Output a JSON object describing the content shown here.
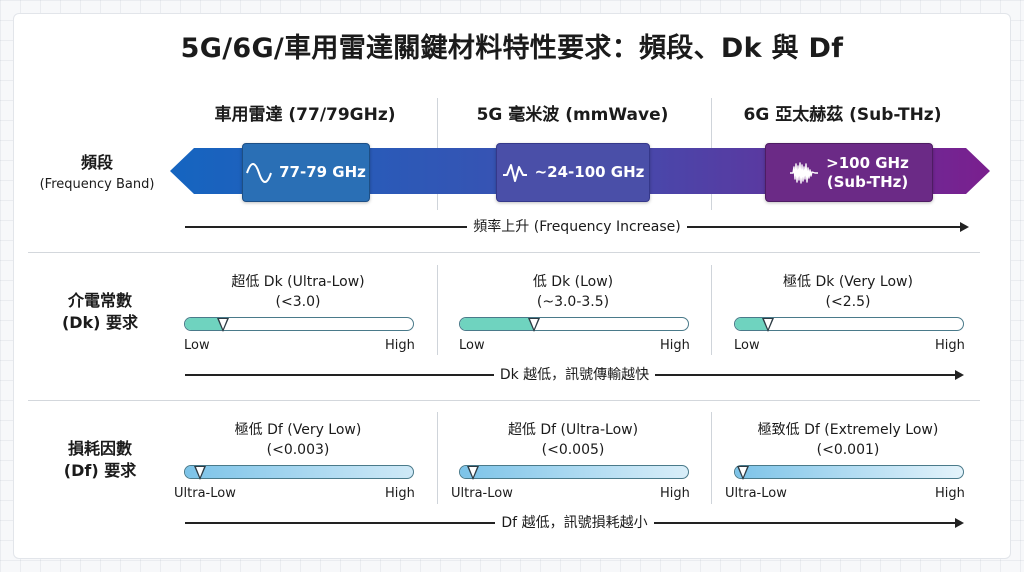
{
  "title": "5G/6G/車用雷達關鍵材料特性要求：頻段、Dk 與 Df",
  "columns": [
    {
      "header": "車用雷達 (77/79GHz)"
    },
    {
      "header": "5G 毫米波 (mmWave)"
    },
    {
      "header": "6G 亞太赫茲 (Sub-THz)"
    }
  ],
  "rows": {
    "band": {
      "label_zh": "頻段",
      "label_en": "(Frequency Band)"
    },
    "dk": {
      "label_line1": "介電常數",
      "label_line2": "(Dk) 要求"
    },
    "df": {
      "label_line1": "損耗因數",
      "label_line2": "(Df) 要求"
    }
  },
  "bands": [
    {
      "label": "77-79 GHz",
      "icon": "sine-wave-icon",
      "color": "#2a6fb5"
    },
    {
      "label": "~24-100 GHz",
      "icon": "wave-icon",
      "color": "#4a4fa8"
    },
    {
      "label_line1": ">100 GHz",
      "label_line2": "(Sub-THz)",
      "icon": "dense-wave-icon",
      "color": "#6b2a86"
    }
  ],
  "frequency_arrow": "頻率上升 (Frequency Increase)",
  "dk_items": [
    {
      "line1": "超低 Dk (Ultra-Low)",
      "line2": "(<3.0)",
      "level": 0.17,
      "low": "Low",
      "high": "High"
    },
    {
      "line1": "低 Dk (Low)",
      "line2": "(~3.0-3.5)",
      "level": 0.33,
      "low": "Low",
      "high": "High"
    },
    {
      "line1": "極低 Dk (Very Low)",
      "line2": "(<2.5)",
      "level": 0.15,
      "low": "Low",
      "high": "High"
    }
  ],
  "dk_arrow": "Dk 越低，訊號傳輸越快",
  "df_items": [
    {
      "line1": "極低 Df (Very Low)",
      "line2": "(<0.003)",
      "level": 0.07,
      "low": "Ultra-Low",
      "high": "High"
    },
    {
      "line1": "超低 Df (Ultra-Low)",
      "line2": "(<0.005)",
      "level": 0.06,
      "low": "Ultra-Low",
      "high": "High"
    },
    {
      "line1": "極致低 Df (Extremely Low)",
      "line2": "(<0.001)",
      "level": 0.04,
      "low": "Ultra-Low",
      "high": "High"
    }
  ],
  "df_arrow": "Df 越低，訊號損耗越小",
  "colors": {
    "band_gradient_start": "#1565c0",
    "band_gradient_end": "#7a1f8e",
    "dk_fill": "#6fd3bf",
    "df_fill": "#7cc3e8"
  }
}
